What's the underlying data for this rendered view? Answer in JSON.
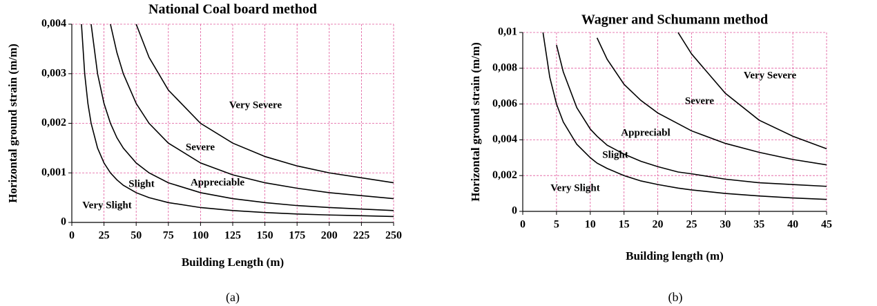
{
  "chart_data": [
    {
      "type": "line",
      "title": "National Coal board method",
      "xlabel": "Building Length (m)",
      "ylabel": "Horizontal ground strain (m/m)",
      "caption": "(a)",
      "x": [
        7.5,
        10,
        12.5,
        15,
        20,
        25,
        30,
        35,
        40,
        50,
        60,
        75,
        100,
        125,
        150,
        175,
        200,
        250
      ],
      "series": [
        {
          "color": "#000000",
          "values": [
            0.004,
            0.003,
            0.0024,
            0.002,
            0.0015,
            0.0012,
            0.001,
            0.00086,
            0.00075,
            0.0006,
            0.0005,
            0.0004,
            0.0003,
            0.00024,
            0.0002,
            0.00017,
            0.00015,
            0.00012
          ]
        },
        {
          "color": "#000000",
          "values": [
            null,
            null,
            null,
            0.004,
            0.003,
            0.0024,
            0.002,
            0.00171,
            0.0015,
            0.0012,
            0.001,
            0.0008,
            0.0006,
            0.00048,
            0.0004,
            0.00034,
            0.0003,
            0.00024
          ]
        },
        {
          "color": "#000000",
          "values": [
            null,
            null,
            null,
            null,
            null,
            null,
            0.004,
            0.00343,
            0.003,
            0.0024,
            0.002,
            0.0016,
            0.0012,
            0.00096,
            0.0008,
            0.00069,
            0.0006,
            0.00048
          ]
        },
        {
          "color": "#000000",
          "values": [
            null,
            null,
            null,
            null,
            null,
            null,
            null,
            null,
            null,
            0.004,
            0.00333,
            0.00267,
            0.002,
            0.0016,
            0.00133,
            0.00114,
            0.001,
            0.0008
          ]
        }
      ],
      "annotations": [
        "Very Slight",
        "Slight",
        "Appreciable",
        "Severe",
        "Very Severe"
      ],
      "xlim": [
        0,
        250
      ],
      "xticks": [
        0,
        25,
        50,
        75,
        100,
        125,
        150,
        175,
        200,
        225,
        250
      ],
      "ylim": [
        0,
        0.004
      ],
      "yticks": [
        0,
        {
          "value": 0.001,
          "label": "0,001"
        },
        {
          "value": 0.002,
          "label": "0,002"
        },
        {
          "value": 0.003,
          "label": "0,003"
        },
        {
          "value": 0.004,
          "label": "0,004"
        }
      ],
      "grid": true
    },
    {
      "type": "line",
      "title": "Wagner and Schumann method",
      "xlabel": "Building length (m)",
      "ylabel": "Horizontal ground strain (m/m)",
      "caption": "(b)",
      "x": [
        2.5,
        3,
        4,
        5,
        6,
        8,
        10,
        11,
        12.5,
        15,
        17.5,
        20,
        23,
        25,
        30,
        35,
        40,
        45
      ],
      "series": [
        {
          "color": "#000000",
          "values": [
            null,
            0.01,
            0.0075,
            0.006,
            0.005,
            0.00375,
            0.003,
            0.0027,
            0.0024,
            0.002,
            0.0017,
            0.0015,
            0.0013,
            0.0012,
            0.001,
            0.00086,
            0.00075,
            0.00067
          ]
        },
        {
          "color": "#000000",
          "values": [
            null,
            null,
            null,
            0.0093,
            0.0078,
            0.0058,
            0.0046,
            0.0042,
            0.0037,
            0.0032,
            0.0028,
            0.0025,
            0.0022,
            0.0021,
            0.0018,
            0.0016,
            0.0015,
            0.0014
          ]
        },
        {
          "color": "#000000",
          "values": [
            null,
            null,
            null,
            null,
            null,
            null,
            null,
            0.0097,
            0.0085,
            0.0071,
            0.0062,
            0.0055,
            0.0049,
            0.0045,
            0.0038,
            0.0033,
            0.0029,
            0.0026
          ]
        },
        {
          "color": "#000000",
          "values": [
            null,
            null,
            null,
            null,
            null,
            null,
            null,
            null,
            null,
            null,
            null,
            null,
            0.01,
            0.0088,
            0.0066,
            0.0051,
            0.0042,
            0.0035
          ]
        }
      ],
      "annotations": [
        "Very Severe",
        "Severe",
        "Appreciabl",
        "Slight",
        "Very Slight"
      ],
      "xlim": [
        0,
        45
      ],
      "xticks": [
        0,
        5,
        10,
        15,
        20,
        25,
        30,
        35,
        40,
        45
      ],
      "ylim": [
        0,
        0.01
      ],
      "yticks": [
        0,
        {
          "value": 0.002,
          "label": "0,002"
        },
        {
          "value": 0.004,
          "label": "0,004"
        },
        {
          "value": 0.006,
          "label": "0,006"
        },
        {
          "value": 0.008,
          "label": "0,008"
        },
        {
          "value": 0.01,
          "label": "0,01"
        }
      ],
      "grid": true
    }
  ]
}
